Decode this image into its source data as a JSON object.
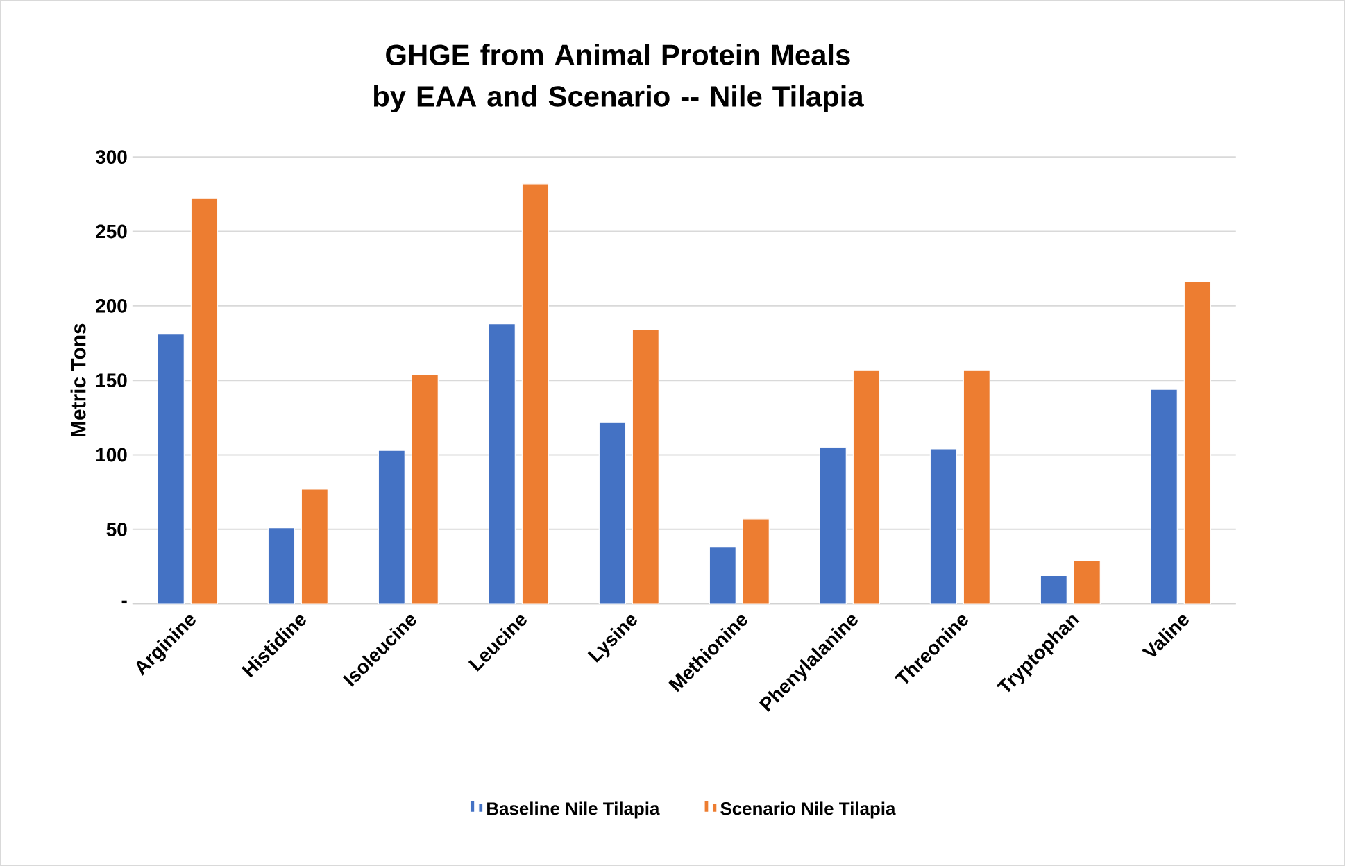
{
  "chart_data": {
    "type": "bar",
    "title": "GHGE from Animal Protein Meals by EAA and Scenario -- Nile Tilapia",
    "ylabel": "Metric Tons",
    "categories": [
      "Arginine",
      "Histidine",
      "Isoleucine",
      "Leucine",
      "Lysine",
      "Methionine",
      "Phenylalanine",
      "Threonine",
      "Tryptophan",
      "Valine"
    ],
    "series": [
      {
        "name": "Baseline Nile Tilapia",
        "color": "#4472c4",
        "values": [
          181,
          51,
          103,
          188,
          122,
          38,
          105,
          104,
          19,
          144
        ]
      },
      {
        "name": "Scenario Nile Tilapia",
        "color": "#ed7d31",
        "values": [
          272,
          77,
          154,
          282,
          184,
          57,
          157,
          157,
          29,
          216
        ]
      }
    ],
    "ylim": [
      0,
      300
    ],
    "yticks": [
      {
        "value": 0,
        "label": "-"
      },
      50,
      100,
      150,
      200,
      250,
      300
    ],
    "grid": "y",
    "legend": "bottom"
  }
}
